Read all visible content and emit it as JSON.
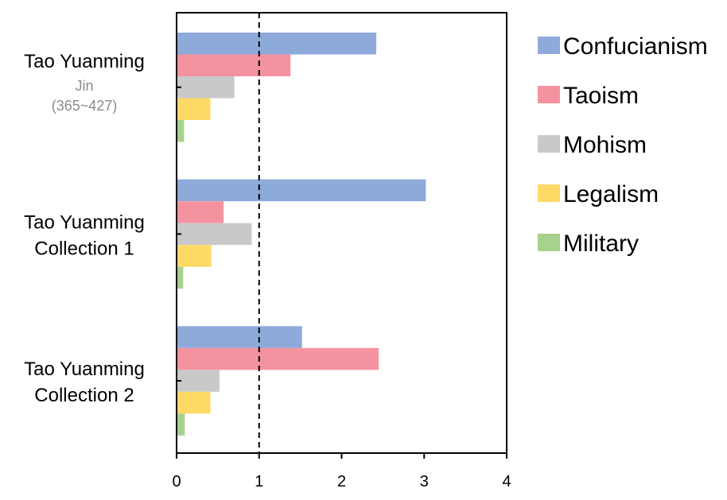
{
  "chart_data": {
    "type": "bar",
    "orientation": "horizontal",
    "categories": [
      {
        "lines": [
          "Tao Yuanming"
        ],
        "sub": [
          "Jin",
          "(365~427)"
        ]
      },
      {
        "lines": [
          "Tao Yuanming",
          "Collection 1"
        ],
        "sub": []
      },
      {
        "lines": [
          "Tao Yuanming",
          "Collection 2"
        ],
        "sub": []
      }
    ],
    "series": [
      {
        "name": "Confucianism",
        "color": "#8eaadb",
        "values": [
          2.42,
          3.02,
          1.52
        ]
      },
      {
        "name": "Taoism",
        "color": "#f4939f",
        "values": [
          1.38,
          0.57,
          2.45
        ]
      },
      {
        "name": "Mohism",
        "color": "#c9c9c9",
        "values": [
          0.7,
          0.91,
          0.52
        ]
      },
      {
        "name": "Legalism",
        "color": "#ffd966",
        "values": [
          0.41,
          0.42,
          0.41
        ]
      },
      {
        "name": "Military",
        "color": "#a9d18e",
        "values": [
          0.09,
          0.08,
          0.1
        ]
      }
    ],
    "xlim": [
      0,
      4
    ],
    "xticks": [
      "0",
      "1",
      "2",
      "3",
      "4"
    ],
    "reference_line": {
      "x": 1,
      "style": "dashed"
    },
    "grid": false,
    "legend": "right"
  }
}
